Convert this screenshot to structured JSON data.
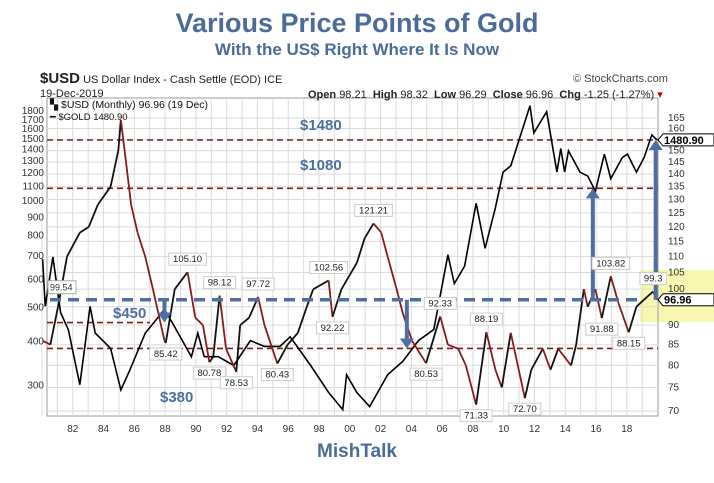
{
  "title": "Various Price Points of Gold",
  "subtitle": "With the US$ Right Where It Is Now",
  "footer": "MishTalk",
  "header": {
    "symbol": "$USD",
    "name": "US Dollar Index - Cash Settle (EOD) ICE",
    "date": "19-Dec-2019",
    "credit": "© StockCharts.com",
    "open_label": "Open",
    "open": "98.21",
    "high_label": "High",
    "high": "98.32",
    "low_label": "Low",
    "low": "96.29",
    "close_label": "Close",
    "close": "96.96",
    "chg_label": "Chg",
    "chg": "-1.25 (-1.27%)"
  },
  "colors": {
    "title": "#4d6b98",
    "usd_up": "#111111",
    "usd_down": "#8b1a1a",
    "gold": "#000000",
    "level_line": "#7a1f1f",
    "arrow": "#4f6fa0",
    "highlight": "#f7f7b0"
  },
  "chart_data": {
    "type": "line",
    "x_axis": {
      "ticks": [
        "82",
        "84",
        "86",
        "88",
        "90",
        "92",
        "94",
        "96",
        "98",
        "00",
        "02",
        "04",
        "06",
        "08",
        "10",
        "12",
        "14",
        "16",
        "18"
      ],
      "range": [
        1980,
        2020
      ]
    },
    "y_left": {
      "scale": "log",
      "ticks": [
        300,
        400,
        500,
        600,
        700,
        800,
        900,
        1000,
        1100,
        1200,
        1300,
        1400,
        1500,
        1600,
        1700,
        1800
      ],
      "range": [
        255,
        1850
      ]
    },
    "y_right": {
      "scale": "log",
      "ticks": [
        70,
        75,
        80,
        85,
        90,
        95,
        100,
        105,
        110,
        115,
        120,
        125,
        130,
        135,
        140,
        145,
        150,
        155,
        160,
        165
      ],
      "range": [
        67,
        168
      ]
    },
    "grid": true,
    "legend_position": "top-left",
    "legend": [
      {
        "label": "$USD (Monthly) 96.96 (19 Dec)"
      },
      {
        "label": "$GOLD 1480.90"
      }
    ],
    "series": [
      {
        "name": "$USD",
        "axis": "right",
        "last_value": "96.96",
        "points": [
          [
            "1980-01",
            86
          ],
          [
            "1980-07",
            85
          ],
          [
            "1981-01",
            95
          ],
          [
            "1981-08",
            110
          ],
          [
            "1982-06",
            118
          ],
          [
            "1983-01",
            120
          ],
          [
            "1983-08",
            128
          ],
          [
            "1984-06",
            135
          ],
          [
            "1984-12",
            150
          ],
          [
            "1985-02",
            164
          ],
          [
            "1985-06",
            145
          ],
          [
            "1985-10",
            128
          ],
          [
            "1986-03",
            118
          ],
          [
            "1986-09",
            110
          ],
          [
            "1987-03",
            100
          ],
          [
            "1987-12",
            86
          ],
          [
            "1988-01",
            85.42
          ],
          [
            "1988-08",
            100
          ],
          [
            "1989-06",
            105.1
          ],
          [
            "1989-12",
            92
          ],
          [
            "1990-06",
            90
          ],
          [
            "1990-11",
            80.78
          ],
          [
            "1991-02",
            82
          ],
          [
            "1991-07",
            98.12
          ],
          [
            "1991-12",
            84
          ],
          [
            "1992-08",
            78.53
          ],
          [
            "1992-11",
            90
          ],
          [
            "1993-06",
            92
          ],
          [
            "1994-01",
            97.72
          ],
          [
            "1994-06",
            90
          ],
          [
            "1995-04",
            80.43
          ],
          [
            "1995-12",
            85
          ],
          [
            "1996-08",
            88
          ],
          [
            "1997-03",
            95
          ],
          [
            "1997-08",
            100
          ],
          [
            "1998-08",
            102.56
          ],
          [
            "1998-11",
            92.22
          ],
          [
            "1999-06",
            100
          ],
          [
            "2000-06",
            108
          ],
          [
            "2000-12",
            116
          ],
          [
            "2001-07",
            121.21
          ],
          [
            "2002-01",
            118
          ],
          [
            "2002-06",
            110
          ],
          [
            "2003-01",
            100
          ],
          [
            "2003-06",
            93
          ],
          [
            "2004-01",
            86
          ],
          [
            "2004-12",
            80.53
          ],
          [
            "2005-11",
            92.33
          ],
          [
            "2006-05",
            85
          ],
          [
            "2007-01",
            84
          ],
          [
            "2007-07",
            80
          ],
          [
            "2008-03",
            71.33
          ],
          [
            "2008-11",
            88.19
          ],
          [
            "2009-06",
            79
          ],
          [
            "2009-11",
            75
          ],
          [
            "2010-06",
            88
          ],
          [
            "2011-05",
            72.7
          ],
          [
            "2011-10",
            79
          ],
          [
            "2012-07",
            84
          ],
          [
            "2013-01",
            79
          ],
          [
            "2013-07",
            84
          ],
          [
            "2014-05",
            80
          ],
          [
            "2014-09",
            85
          ],
          [
            "2015-03",
            100
          ],
          [
            "2015-06",
            95
          ],
          [
            "2015-12",
            100
          ],
          [
            "2016-05",
            91.88
          ],
          [
            "2016-12",
            103.82
          ],
          [
            "2017-06",
            96
          ],
          [
            "2018-02",
            88.15
          ],
          [
            "2018-08",
            95
          ],
          [
            "2019-05",
            98
          ],
          [
            "2019-09",
            99.3
          ],
          [
            "2019-12",
            96.96
          ]
        ]
      },
      {
        "name": "$GOLD",
        "axis": "left",
        "last_value": "1480.90",
        "points": [
          [
            "1980-01",
            680
          ],
          [
            "1980-03",
            500
          ],
          [
            "1980-09",
            690
          ],
          [
            "1981-03",
            480
          ],
          [
            "1981-09",
            430
          ],
          [
            "1982-06",
            300
          ],
          [
            "1983-02",
            500
          ],
          [
            "1983-06",
            420
          ],
          [
            "1984-06",
            380
          ],
          [
            "1985-02",
            290
          ],
          [
            "1985-09",
            330
          ],
          [
            "1986-09",
            420
          ],
          [
            "1987-12",
            490
          ],
          [
            "1988-06",
            450
          ],
          [
            "1989-09",
            360
          ],
          [
            "1990-02",
            420
          ],
          [
            "1990-07",
            360
          ],
          [
            "1991-06",
            360
          ],
          [
            "1992-06",
            340
          ],
          [
            "1993-07",
            400
          ],
          [
            "1994-06",
            385
          ],
          [
            "1995-06",
            385
          ],
          [
            "1996-02",
            410
          ],
          [
            "1997-06",
            340
          ],
          [
            "1998-08",
            285
          ],
          [
            "1999-07",
            255
          ],
          [
            "1999-10",
            320
          ],
          [
            "2000-06",
            285
          ],
          [
            "2001-04",
            260
          ],
          [
            "2002-06",
            320
          ],
          [
            "2003-06",
            350
          ],
          [
            "2004-06",
            400
          ],
          [
            "2005-06",
            430
          ],
          [
            "2006-05",
            700
          ],
          [
            "2006-10",
            580
          ],
          [
            "2007-06",
            650
          ],
          [
            "2008-03",
            980
          ],
          [
            "2008-10",
            730
          ],
          [
            "2009-06",
            950
          ],
          [
            "2009-12",
            1200
          ],
          [
            "2010-06",
            1250
          ],
          [
            "2011-09",
            1850
          ],
          [
            "2011-12",
            1550
          ],
          [
            "2012-10",
            1780
          ],
          [
            "2013-06",
            1200
          ],
          [
            "2013-09",
            1400
          ],
          [
            "2013-12",
            1200
          ],
          [
            "2014-03",
            1380
          ],
          [
            "2014-12",
            1200
          ],
          [
            "2015-06",
            1170
          ],
          [
            "2015-12",
            1060
          ],
          [
            "2016-07",
            1350
          ],
          [
            "2016-12",
            1150
          ],
          [
            "2017-09",
            1320
          ],
          [
            "2018-01",
            1350
          ],
          [
            "2018-08",
            1200
          ],
          [
            "2019-02",
            1320
          ],
          [
            "2019-08",
            1530
          ],
          [
            "2019-12",
            1480.9
          ]
        ]
      }
    ],
    "usd_point_labels": [
      {
        "date": "1988-01",
        "value": 85.42,
        "text": "85.42",
        "kind": "low"
      },
      {
        "date": "1989-06",
        "value": 105.1,
        "text": "105.10",
        "kind": "high"
      },
      {
        "date": "1990-11",
        "value": 80.78,
        "text": "80.78",
        "kind": "low"
      },
      {
        "date": "1991-07",
        "value": 98.12,
        "text": "98.12",
        "kind": "high"
      },
      {
        "date": "1992-08",
        "value": 78.53,
        "text": "78.53",
        "kind": "low"
      },
      {
        "date": "1994-01",
        "value": 97.72,
        "text": "97.72",
        "kind": "high"
      },
      {
        "date": "1995-04",
        "value": 80.43,
        "text": "80.43",
        "kind": "low"
      },
      {
        "date": "1998-08",
        "value": 102.56,
        "text": "102.56",
        "kind": "high"
      },
      {
        "date": "1998-11",
        "value": 92.22,
        "text": "92.22",
        "kind": "low"
      },
      {
        "date": "2001-07",
        "value": 121.21,
        "text": "121.21",
        "kind": "high"
      },
      {
        "date": "2004-12",
        "value": 80.53,
        "text": "80.53",
        "kind": "low"
      },
      {
        "date": "2005-11",
        "value": 92.33,
        "text": "92.33",
        "kind": "high"
      },
      {
        "date": "2008-03",
        "value": 71.33,
        "text": "71.33",
        "kind": "low"
      },
      {
        "date": "2008-11",
        "value": 88.19,
        "text": "88.19",
        "kind": "high"
      },
      {
        "date": "2011-05",
        "value": 72.7,
        "text": "72.70",
        "kind": "low"
      },
      {
        "date": "2016-05",
        "value": 91.88,
        "text": "91.88",
        "kind": "low"
      },
      {
        "date": "2016-12",
        "value": 103.82,
        "text": "103.82",
        "kind": "high"
      },
      {
        "date": "2018-02",
        "value": 88.15,
        "text": "88.15",
        "kind": "low"
      },
      {
        "date": "2019-09",
        "value": 99.3,
        "text": "99.3",
        "kind": "high"
      }
    ],
    "gold_levels": [
      {
        "value": 1480,
        "text": "$1480"
      },
      {
        "value": 1080,
        "text": "$1080"
      },
      {
        "value": 450,
        "text": "$450"
      },
      {
        "value": 380,
        "text": "$380"
      }
    ],
    "usd_reference": {
      "value": 96.96,
      "start_label": "99.54"
    },
    "arrows": [
      {
        "date": "1987-12",
        "from_usd": 96.96,
        "to_gold": 450
      },
      {
        "date": "2003-09",
        "from_usd": 96.96,
        "to_gold": 380
      },
      {
        "date": "2015-10",
        "from_usd": 96.96,
        "to_gold": 1080
      },
      {
        "date": "2019-11",
        "from_usd": 96.96,
        "to_gold": 1480
      }
    ]
  }
}
